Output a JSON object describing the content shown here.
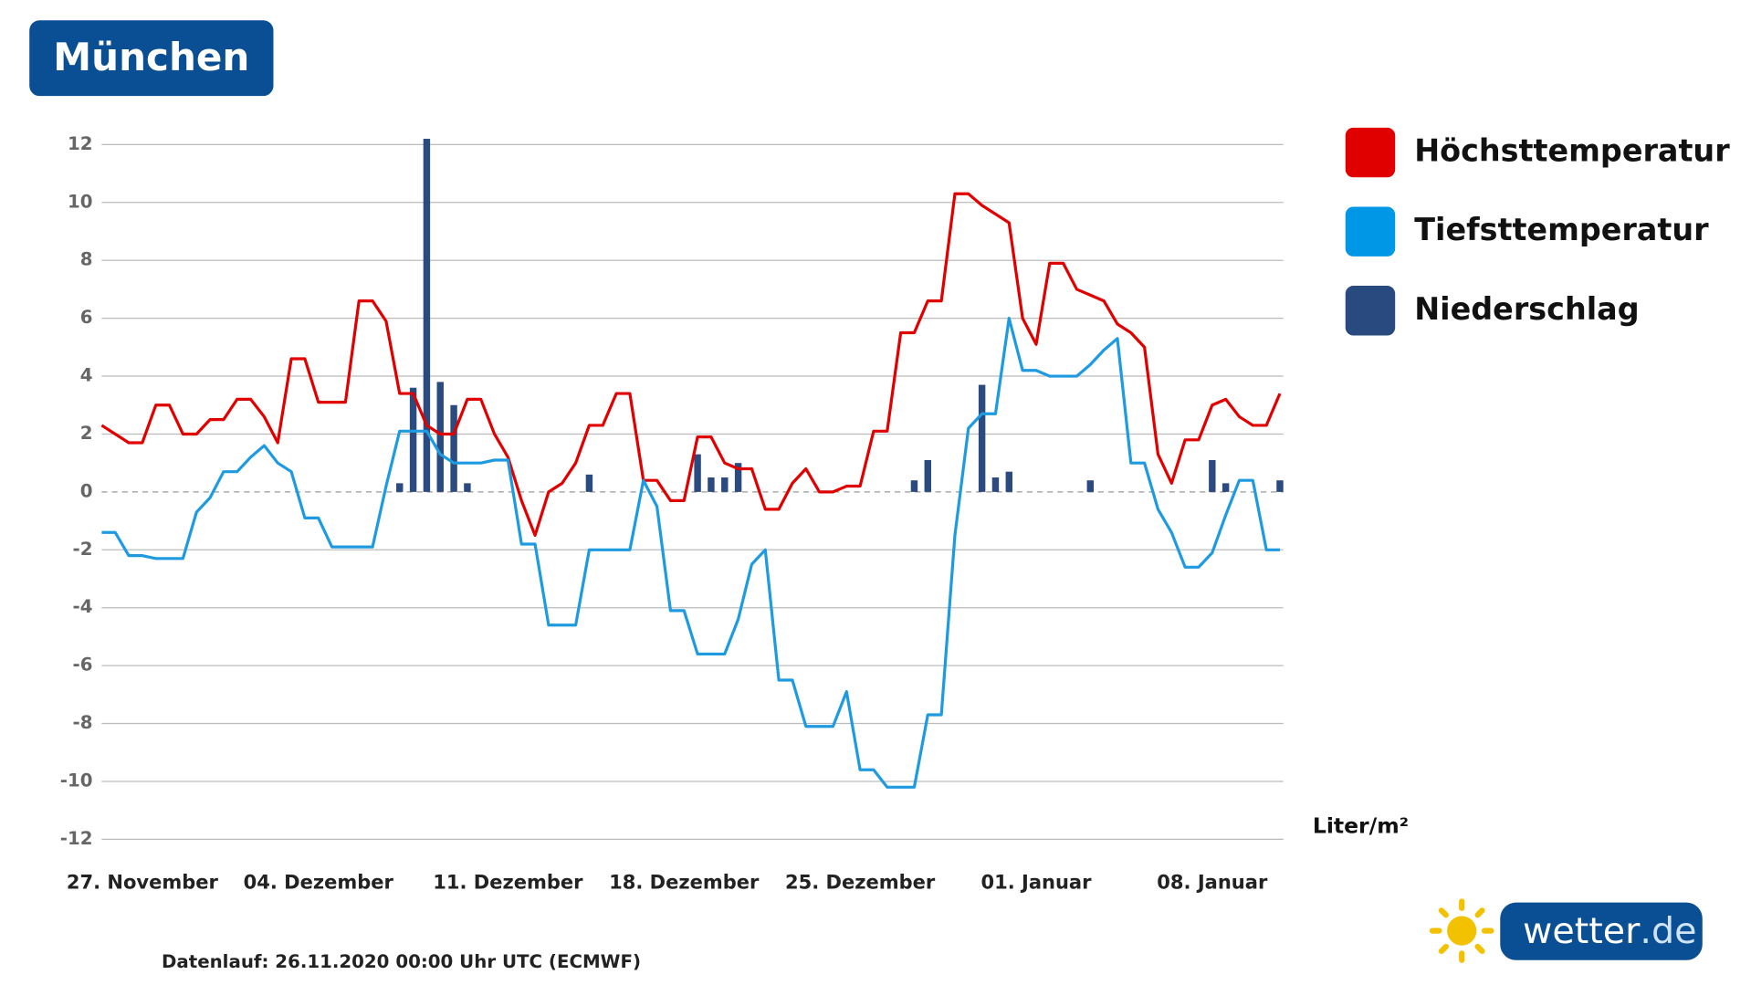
{
  "header": {
    "title": "München"
  },
  "chart_data": {
    "type": "line",
    "categories": [
      null,
      null,
      null,
      "27. November",
      null,
      null,
      null,
      null,
      null,
      null,
      null,
      null,
      null,
      null,
      null,
      null,
      "04. Dezember",
      null,
      null,
      null,
      null,
      null,
      null,
      null,
      null,
      null,
      null,
      null,
      null,
      null,
      "11. Dezember",
      null,
      null,
      null,
      null,
      null,
      null,
      null,
      null,
      null,
      null,
      null,
      null,
      "18. Dezember",
      null,
      null,
      null,
      null,
      null,
      null,
      null,
      null,
      null,
      null,
      null,
      null,
      "25. Dezember",
      null,
      null,
      null,
      null,
      null,
      null,
      null,
      null,
      null,
      null,
      null,
      null,
      "01. Januar",
      null,
      null,
      null,
      null,
      null,
      null,
      null,
      null,
      null,
      null,
      null,
      null,
      "08. Januar",
      null,
      null,
      null,
      null,
      null
    ],
    "series": [
      {
        "name": "Höchsttemperatur",
        "type": "line",
        "color": "#e10000",
        "legend_color": "#e10000",
        "values": [
          2.3,
          2.0,
          1.7,
          1.7,
          3.0,
          3.0,
          2.0,
          2.0,
          2.5,
          2.5,
          3.2,
          3.2,
          2.6,
          1.7,
          4.6,
          4.6,
          3.1,
          3.1,
          3.1,
          6.6,
          6.6,
          5.9,
          3.4,
          3.4,
          2.3,
          2.0,
          2.0,
          3.2,
          3.2,
          2.0,
          1.2,
          -0.3,
          -1.5,
          0.0,
          0.3,
          1.0,
          2.3,
          2.3,
          3.4,
          3.4,
          0.4,
          0.4,
          -0.3,
          -0.3,
          1.9,
          1.9,
          1.0,
          0.8,
          0.8,
          -0.6,
          -0.6,
          0.3,
          0.8,
          0.0,
          0.0,
          0.2,
          0.2,
          2.1,
          2.1,
          5.5,
          5.5,
          6.6,
          6.6,
          10.3,
          10.3,
          9.9,
          9.6,
          9.3,
          6.0,
          5.1,
          7.9,
          7.9,
          7.0,
          6.8,
          6.6,
          5.8,
          5.5,
          5.0,
          1.3,
          0.3,
          1.8,
          1.8,
          3.0,
          3.2,
          2.6,
          2.3,
          2.3,
          3.4
        ]
      },
      {
        "name": "Tiefsttemperatur",
        "type": "line",
        "color": "#1e9be0",
        "legend_color": "#0097e6",
        "values": [
          -1.4,
          -1.4,
          -2.2,
          -2.2,
          -2.3,
          -2.3,
          -2.3,
          -0.7,
          -0.2,
          0.7,
          0.7,
          1.2,
          1.6,
          1.0,
          0.7,
          -0.9,
          -0.9,
          -1.9,
          -1.9,
          -1.9,
          -1.9,
          0.2,
          2.1,
          2.1,
          2.1,
          1.3,
          1.0,
          1.0,
          1.0,
          1.1,
          1.1,
          -1.8,
          -1.8,
          -4.6,
          -4.6,
          -4.6,
          -2.0,
          -2.0,
          -2.0,
          -2.0,
          0.4,
          -0.5,
          -4.1,
          -4.1,
          -5.6,
          -5.6,
          -5.6,
          -4.4,
          -2.5,
          -2.0,
          -6.5,
          -6.5,
          -8.1,
          -8.1,
          -8.1,
          -6.9,
          -9.6,
          -9.6,
          -10.2,
          -10.2,
          -10.2,
          -7.7,
          -7.7,
          -1.5,
          2.2,
          2.7,
          2.7,
          6.0,
          4.2,
          4.2,
          4.0,
          4.0,
          4.0,
          4.4,
          4.9,
          5.3,
          1.0,
          1.0,
          -0.6,
          -1.4,
          -2.6,
          -2.6,
          -2.1,
          -0.8,
          0.4,
          0.4,
          -2.0,
          -2.0
        ]
      },
      {
        "name": "Niederschlag",
        "type": "bar",
        "color": "#2b4a80",
        "legend_color": "#284a7e",
        "values": [
          0,
          0,
          0,
          0,
          0,
          0,
          0,
          0,
          0,
          0,
          0,
          0,
          0,
          0,
          0,
          0,
          0,
          0,
          0,
          0,
          0,
          0,
          0.3,
          3.6,
          12.2,
          3.8,
          3.0,
          0.3,
          0,
          0,
          0,
          0,
          0,
          0,
          0,
          0,
          0.6,
          0,
          0,
          0,
          0,
          0,
          0,
          0,
          1.3,
          0.5,
          0.5,
          1.0,
          0,
          0,
          0,
          0,
          0,
          0,
          0,
          0,
          0,
          0,
          0,
          0,
          0.4,
          1.1,
          0,
          0,
          0,
          3.7,
          0.5,
          0.7,
          0,
          0,
          0,
          0,
          0,
          0.4,
          0,
          0,
          0,
          0,
          0,
          0,
          0,
          0,
          1.1,
          0.3,
          0,
          0,
          0,
          0.4
        ]
      }
    ],
    "ylim": [
      -12,
      12
    ],
    "yticks": [
      -12,
      -10,
      -8,
      -6,
      -4,
      -2,
      0,
      2,
      4,
      6,
      8,
      10,
      12
    ],
    "grid": true,
    "precip_unit": "Liter/m²",
    "footnote": "Datenlauf: 26.11.2020 00:00 Uhr UTC (ECMWF)"
  },
  "logo": {
    "text": "wetter",
    "suffix": ".de"
  }
}
